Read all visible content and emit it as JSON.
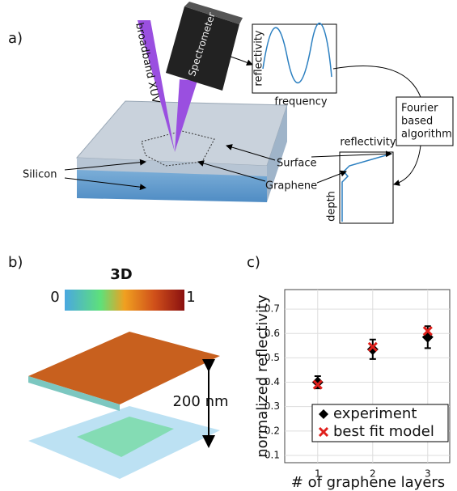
{
  "panel_a": {
    "label": "a)",
    "beam": "broadband XUV",
    "spectrometer": "Spectrometer",
    "graph1_y": "reflectivity",
    "graph1_x": "frequency",
    "algorithm": [
      "Fourier",
      "based",
      "algorithm"
    ],
    "graph2_x": "reflectivity",
    "graph2_y": "depth",
    "surface": "Surface",
    "graphene": "Graphene",
    "silicon": "Silicon"
  },
  "panel_b": {
    "label": "b)",
    "title": "3D",
    "scale_min": "0",
    "scale_max": "1",
    "thickness": "200 nm"
  },
  "panel_c": {
    "label": "c)"
  },
  "chart_data": {
    "type": "scatter",
    "y_label": "normalized reflectivity",
    "x_label": "# of graphene layers",
    "xlim": [
      0.4,
      3.4
    ],
    "ylim": [
      0.07,
      0.78
    ],
    "xticks": [
      1,
      2,
      3
    ],
    "yticks": [
      0.1,
      0.2,
      0.3,
      0.4,
      0.5,
      0.6,
      0.7
    ],
    "grid": true,
    "legend": "lower right",
    "series": [
      {
        "name": "experiment",
        "color": "#000000",
        "marker": "diamond",
        "x": [
          1,
          2,
          3
        ],
        "values": [
          0.4,
          0.535,
          0.585
        ],
        "errors": [
          0.025,
          0.04,
          0.045
        ]
      },
      {
        "name": "best fit model",
        "color": "#e0201c",
        "marker": "x",
        "x": [
          1,
          2,
          3
        ],
        "values": [
          0.39,
          0.545,
          0.61
        ]
      }
    ]
  }
}
